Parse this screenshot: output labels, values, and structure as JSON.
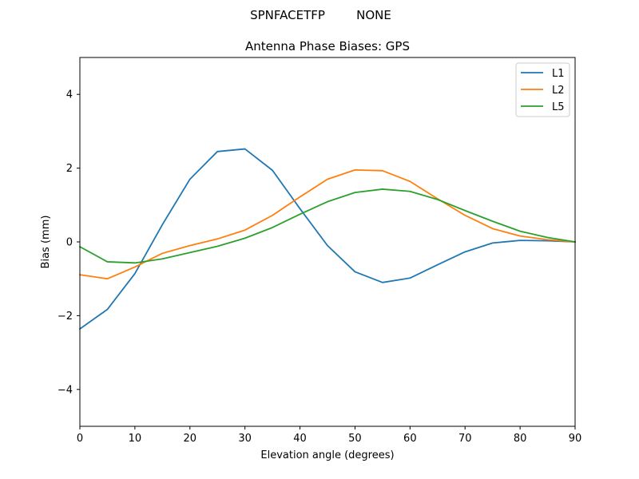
{
  "suptitle": {
    "left": "SPNFACETFP",
    "right": "NONE"
  },
  "chart_data": {
    "type": "line",
    "title": "Antenna Phase Biases: GPS",
    "xlabel": "Elevation angle (degrees)",
    "ylabel": "Bias (mm)",
    "xlim": [
      0,
      90
    ],
    "ylim": [
      -5,
      5
    ],
    "xticks": [
      0,
      10,
      20,
      30,
      40,
      50,
      60,
      70,
      80,
      90
    ],
    "yticks": [
      -4,
      -2,
      0,
      2,
      4
    ],
    "ytick_labels": [
      "−4",
      "−2",
      "0",
      "2",
      "4"
    ],
    "grid": false,
    "legend_position": "top-right",
    "x": [
      0,
      5,
      10,
      15,
      20,
      25,
      30,
      35,
      40,
      45,
      50,
      55,
      60,
      65,
      70,
      75,
      80,
      85,
      90
    ],
    "series": [
      {
        "name": "L1",
        "color": "#1f77b4",
        "values": [
          -2.36,
          -1.83,
          -0.86,
          0.47,
          1.7,
          2.45,
          2.52,
          1.94,
          0.9,
          -0.1,
          -0.81,
          -1.1,
          -0.98,
          -0.62,
          -0.27,
          -0.03,
          0.04,
          0.03,
          0.0
        ]
      },
      {
        "name": "L2",
        "color": "#ff7f0e",
        "values": [
          -0.89,
          -1.0,
          -0.68,
          -0.31,
          -0.1,
          0.08,
          0.32,
          0.72,
          1.22,
          1.7,
          1.95,
          1.93,
          1.64,
          1.17,
          0.72,
          0.36,
          0.16,
          0.06,
          0.0
        ]
      },
      {
        "name": "L5",
        "color": "#2ca02c",
        "values": [
          -0.13,
          -0.54,
          -0.57,
          -0.46,
          -0.29,
          -0.12,
          0.1,
          0.39,
          0.75,
          1.09,
          1.34,
          1.43,
          1.37,
          1.15,
          0.85,
          0.56,
          0.29,
          0.12,
          0.0
        ]
      }
    ]
  }
}
